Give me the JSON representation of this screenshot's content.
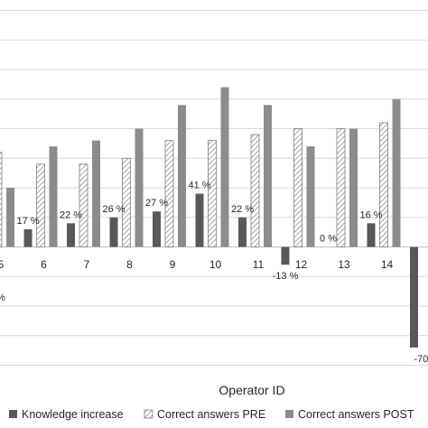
{
  "chart_data": {
    "type": "bar",
    "xlabel": "Operator ID",
    "ylabel": "",
    "grid": true,
    "legend_placement": "bottom",
    "categories": [
      "5",
      "6",
      "7",
      "8",
      "9",
      "10",
      "11",
      "12",
      "13",
      "14",
      ""
    ],
    "series": [
      {
        "name": "Knowledge increase",
        "color": "#595959",
        "pattern": "solid",
        "values": [
          null,
          3,
          4,
          5,
          6,
          9,
          5,
          -3,
          0,
          4,
          -17
        ],
        "data_labels": [
          "",
          "17 %",
          "22 %",
          "26 %",
          "27 %",
          "41 %",
          "22 %",
          "-13 %",
          "0 %",
          "16 %",
          "-70"
        ]
      },
      {
        "name": "Correct answers PRE",
        "color": "#7f7f7f",
        "pattern": "hatched",
        "values": [
          16,
          14,
          14,
          15,
          18,
          18,
          19,
          20,
          20,
          21,
          null
        ]
      },
      {
        "name": "Correct answers POST",
        "color": "#8c8c8c",
        "pattern": "solid",
        "values": [
          10,
          17,
          18,
          20,
          24,
          27,
          24,
          17,
          20,
          25,
          null
        ]
      }
    ],
    "extra_labels": [
      {
        "text": "%",
        "category_index": 0
      }
    ]
  }
}
